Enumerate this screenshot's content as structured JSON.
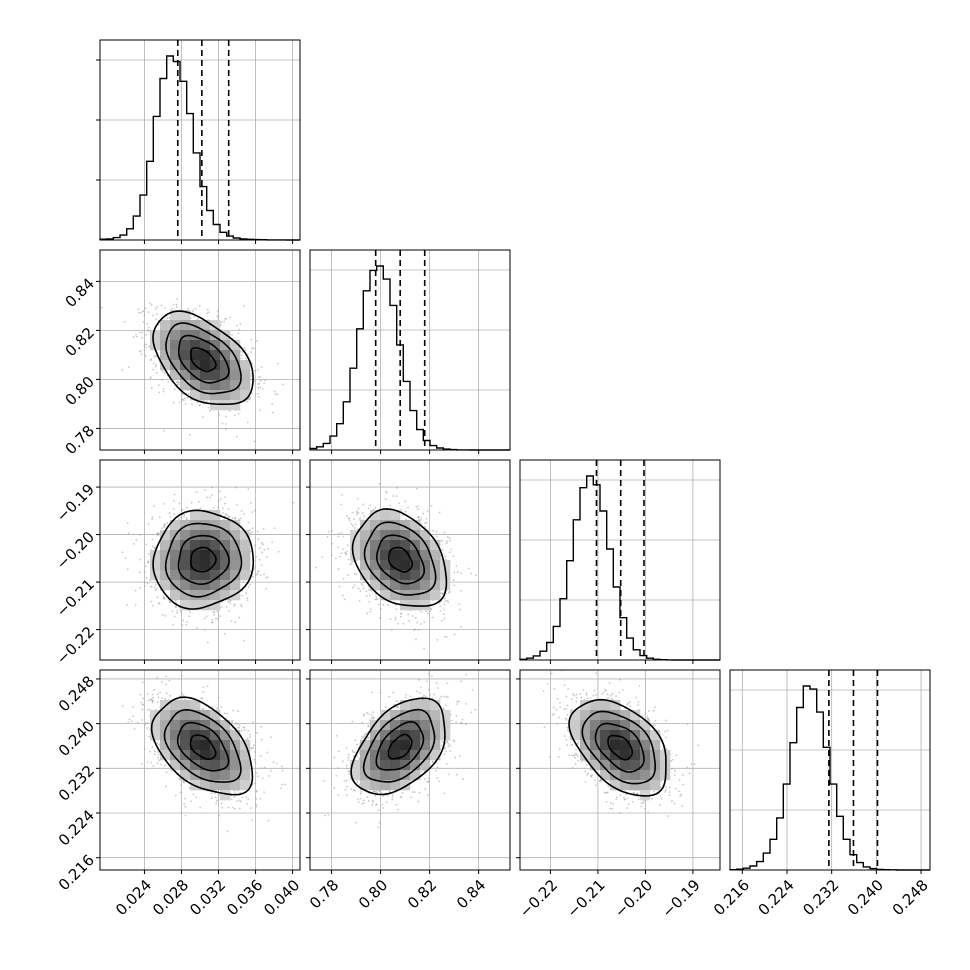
{
  "chart_data": {
    "type": "corner",
    "parameters": [
      {
        "id": "p1",
        "range": [
          0.0192,
          0.0408
        ],
        "ticks": [
          0.024,
          0.028,
          0.032,
          0.036,
          0.04
        ],
        "tick_labels": [
          "0.024",
          "0.028",
          "0.032",
          "0.036",
          "0.040"
        ],
        "quantiles": [
          0.0276,
          0.0302,
          0.0331
        ],
        "mean": 0.0303,
        "sd": 0.0027
      },
      {
        "id": "p2",
        "range": [
          0.7712,
          0.8528
        ],
        "ticks": [
          0.78,
          0.8,
          0.82,
          0.84
        ],
        "tick_labels": [
          "0.78",
          "0.80",
          "0.82",
          "0.84"
        ],
        "quantiles": [
          0.798,
          0.808,
          0.818
        ],
        "mean": 0.808,
        "sd": 0.0095
      },
      {
        "id": "p3",
        "range": [
          -0.2264,
          -0.1843
        ],
        "ticks": [
          -0.22,
          -0.21,
          -0.2,
          -0.19
        ],
        "tick_labels": [
          "−0.22",
          "−0.21",
          "−0.20",
          "−0.19"
        ],
        "quantiles": [
          -0.2103,
          -0.2052,
          -0.2003
        ],
        "mean": -0.2053,
        "sd": 0.0051
      },
      {
        "id": "p4",
        "range": [
          0.2138,
          0.2496
        ],
        "ticks": [
          0.216,
          0.224,
          0.232,
          0.24,
          0.248
        ],
        "tick_labels": [
          "0.216",
          "0.224",
          "0.232",
          "0.240",
          "0.248"
        ],
        "quantiles": [
          0.2315,
          0.2359,
          0.2402
        ],
        "mean": 0.2358,
        "sd": 0.0043
      }
    ],
    "histograms": [
      {
        "param": "p1",
        "bin_edges_range": [
          0.0192,
          0.0408
        ],
        "counts": [
          6,
          8,
          17,
          35,
          80,
          170,
          320,
          560,
          880,
          1150,
          1310,
          1270,
          1130,
          900,
          620,
          380,
          210,
          110,
          55,
          28,
          14,
          8,
          5,
          3,
          2,
          1,
          1,
          1,
          0,
          0
        ]
      },
      {
        "param": "p2",
        "bin_edges_range": [
          0.7712,
          0.8528
        ],
        "counts": [
          10,
          22,
          45,
          95,
          180,
          330,
          560,
          830,
          1090,
          1230,
          1260,
          1170,
          990,
          720,
          470,
          270,
          140,
          65,
          30,
          14,
          6,
          3,
          1,
          1,
          0,
          0,
          0,
          0,
          0,
          0
        ]
      },
      {
        "param": "p3",
        "bin_edges_range": [
          -0.2264,
          -0.1843
        ],
        "counts": [
          5,
          12,
          28,
          60,
          120,
          230,
          420,
          680,
          960,
          1180,
          1260,
          1200,
          1020,
          760,
          500,
          290,
          150,
          70,
          30,
          12,
          5,
          2,
          1,
          0,
          0,
          0,
          0,
          0,
          0,
          0
        ]
      },
      {
        "param": "p4",
        "bin_edges_range": [
          0.2138,
          0.2496
        ],
        "counts": [
          2,
          5,
          12,
          26,
          55,
          110,
          200,
          340,
          560,
          830,
          1060,
          1200,
          1180,
          1030,
          800,
          560,
          350,
          200,
          100,
          48,
          20,
          9,
          4,
          2,
          1,
          0,
          0,
          0,
          0,
          0
        ]
      }
    ],
    "correlations": {
      "p2_p1": -0.45,
      "p3_p1": 0.05,
      "p3_p2": -0.3,
      "p4_p1": -0.45,
      "p4_p2": 0.45,
      "p4_p3": -0.45
    },
    "contour_levels": [
      "0.5 sigma",
      "1 sigma",
      "1.5 sigma",
      "2 sigma"
    ],
    "grid": true,
    "colors": {
      "points": "#9a9a9a",
      "density": "#000000",
      "lines": "#000000"
    }
  }
}
